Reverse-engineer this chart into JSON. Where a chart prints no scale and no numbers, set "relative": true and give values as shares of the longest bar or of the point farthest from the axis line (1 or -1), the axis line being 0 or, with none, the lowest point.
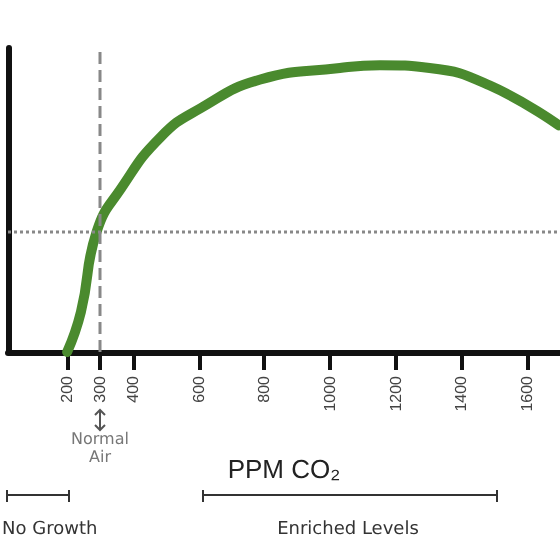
{
  "chart_data": {
    "type": "line",
    "relative": true,
    "xlabel": "PPM CO₂",
    "x": [
      200,
      242,
      290,
      364,
      485,
      606,
      788,
      1030,
      1152,
      1303,
      1485,
      1697
    ],
    "series": [
      {
        "color": "#4a8a2e",
        "values": [
          0,
          0.14,
          0.42,
          0.57,
          0.75,
          0.85,
          0.95,
          0.99,
          1,
          0.99,
          0.93,
          0.79
        ]
      }
    ],
    "xlim": [
      20,
      1700
    ],
    "xticks": [
      200,
      300,
      400,
      600,
      800,
      1000,
      1200,
      1400,
      1600
    ],
    "ref_lines": [
      {
        "axis": "x",
        "value": 300,
        "line_style": "dashed",
        "color": "#888888"
      },
      {
        "axis": "y",
        "value": 0.417,
        "line_style": "dotted",
        "color": "#888888"
      }
    ],
    "annotations": [
      {
        "text": "Normal Air",
        "x": 300
      },
      "No Growth",
      "Enriched Levels"
    ],
    "grid": false,
    "marker": "none",
    "line_style": "solid"
  }
}
